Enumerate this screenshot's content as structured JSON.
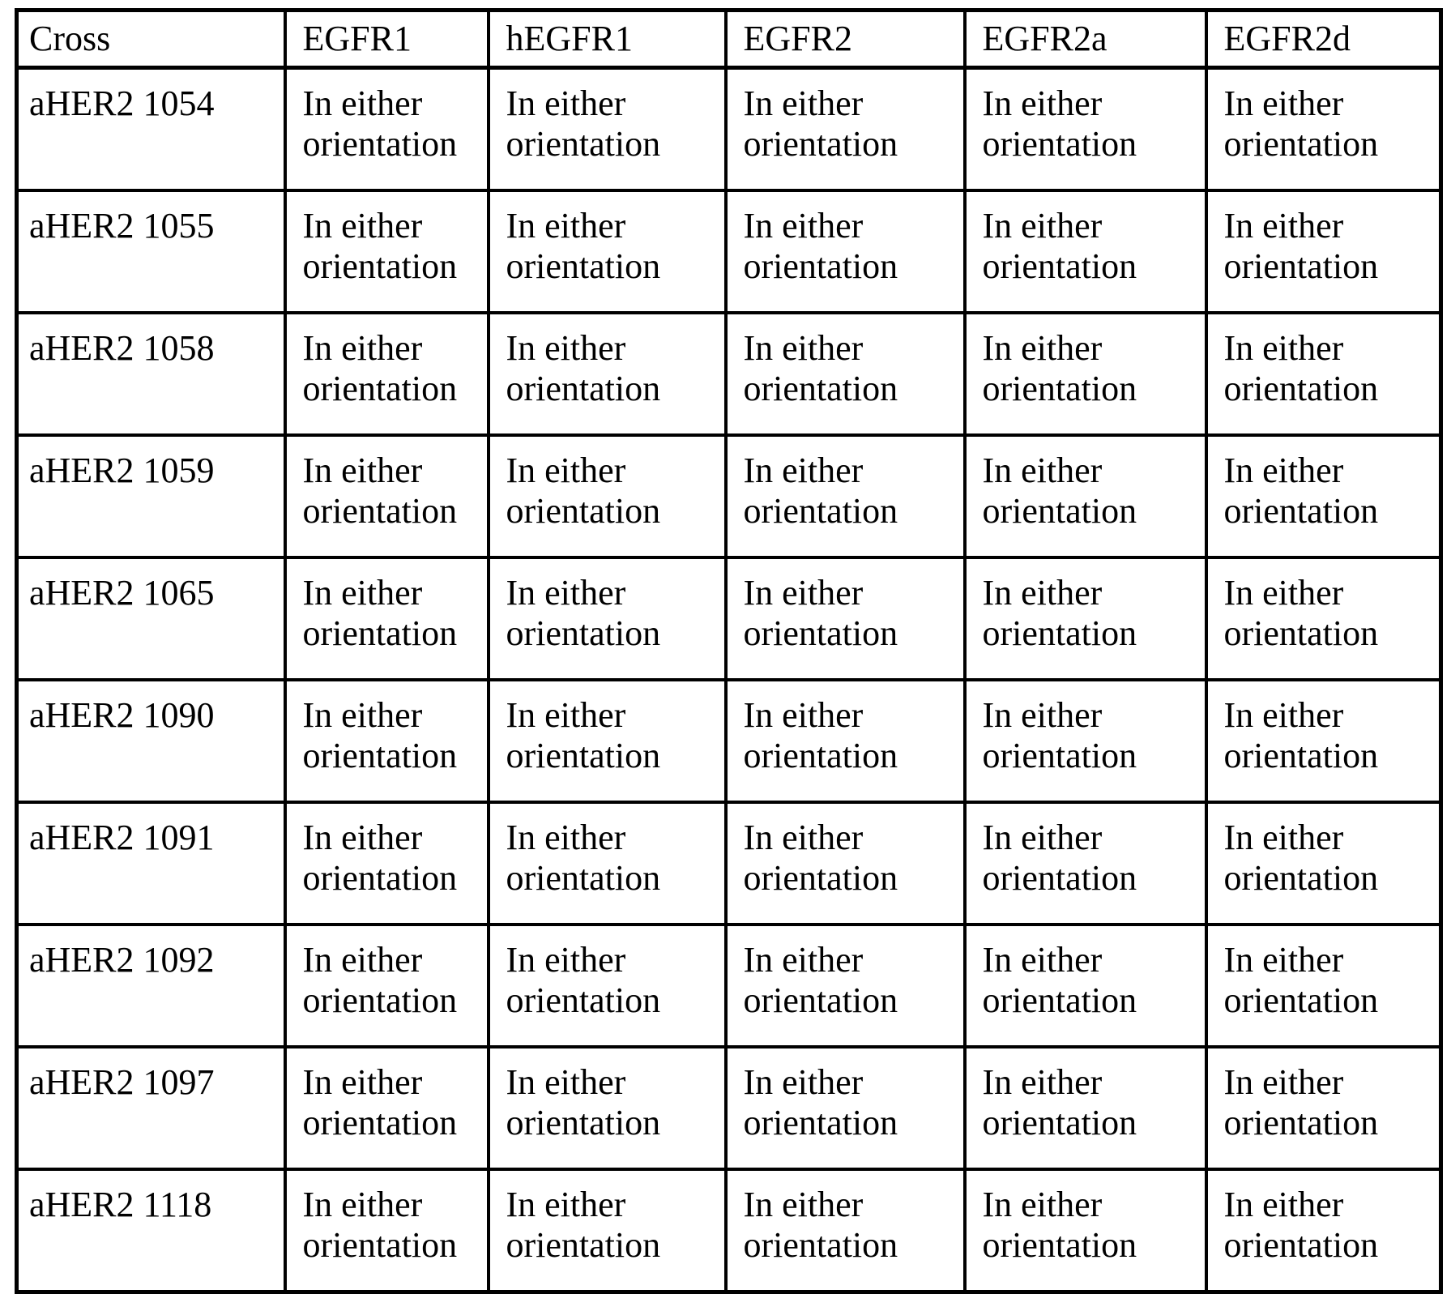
{
  "page": {
    "background_color": "#ffffff",
    "text_color": "#000000",
    "border_color": "#000000"
  },
  "table": {
    "columns": [
      "Cross",
      "EGFR1",
      "hEGFR1",
      "EGFR2",
      "EGFR2a",
      "EGFR2d"
    ],
    "rows": [
      {
        "cross": "aHER2 1054",
        "values": [
          "In either orientation",
          "In either orientation",
          "In either orientation",
          "In either orientation",
          "In either orientation"
        ]
      },
      {
        "cross": "aHER2 1055",
        "values": [
          "In either orientation",
          "In either orientation",
          "In either orientation",
          "In either orientation",
          "In either orientation"
        ]
      },
      {
        "cross": "aHER2 1058",
        "values": [
          "In either orientation",
          "In either orientation",
          "In either orientation",
          "In either orientation",
          "In either orientation"
        ]
      },
      {
        "cross": "aHER2 1059",
        "values": [
          "In either orientation",
          "In either orientation",
          "In either orientation",
          "In either orientation",
          "In either orientation"
        ]
      },
      {
        "cross": "aHER2 1065",
        "values": [
          "In either orientation",
          "In either orientation",
          "In either orientation",
          "In either orientation",
          "In either orientation"
        ]
      },
      {
        "cross": "aHER2 1090",
        "values": [
          "In either orientation",
          "In either orientation",
          "In either orientation",
          "In either orientation",
          "In either orientation"
        ]
      },
      {
        "cross": "aHER2 1091",
        "values": [
          "In either orientation",
          "In either orientation",
          "In either orientation",
          "In either orientation",
          "In either orientation"
        ]
      },
      {
        "cross": "aHER2 1092",
        "values": [
          "In either orientation",
          "In either orientation",
          "In either orientation",
          "In either orientation",
          "In either orientation"
        ]
      },
      {
        "cross": "aHER2 1097",
        "values": [
          "In either orientation",
          "In either orientation",
          "In either orientation",
          "In either orientation",
          "In either orientation"
        ]
      },
      {
        "cross": "aHER2 1118",
        "values": [
          "In either orientation",
          "In either orientation",
          "In either orientation",
          "In either orientation",
          "In either orientation"
        ]
      }
    ]
  }
}
